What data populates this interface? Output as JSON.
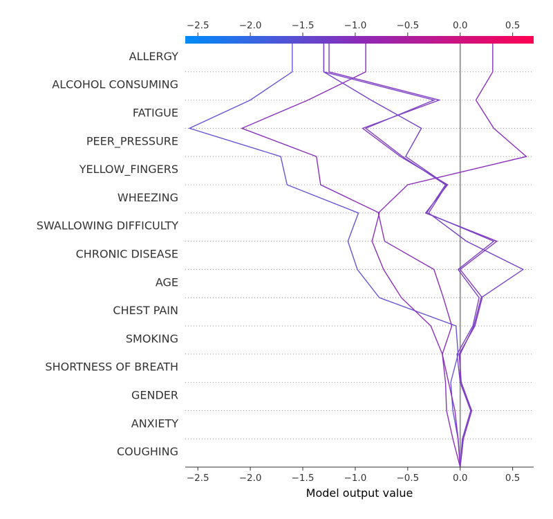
{
  "chart_data": {
    "type": "line",
    "title": "",
    "xlabel": "Model output value",
    "ylabel": "",
    "xlim": [
      -2.62,
      0.7
    ],
    "base_value": 0.0,
    "xticks": [
      -2.5,
      -2.0,
      -1.5,
      -1.0,
      -0.5,
      0.0,
      0.5
    ],
    "xtick_labels": [
      "−2.5",
      "−2.0",
      "−1.5",
      "−1.0",
      "−0.5",
      "0.0",
      "0.5"
    ],
    "colorbar": {
      "range": [
        -2.62,
        0.7
      ],
      "colors": [
        "#008bfb",
        "#8c2ab9",
        "#ff0052"
      ]
    },
    "grid": "dotted horizontal lines between feature rows",
    "features": [
      "ALLERGY ",
      "ALCOHOL CONSUMING",
      "FATIGUE ",
      "PEER_PRESSURE",
      "YELLOW_FINGERS",
      "WHEEZING",
      "SWALLOWING DIFFICULTY",
      "CHRONIC DISEASE",
      "AGE",
      "CHEST PAIN",
      "SMOKING",
      "SHORTNESS OF BREATH",
      "GENDER",
      "ANXIETY",
      "COUGHING"
    ],
    "series": [
      {
        "color": "#6655d8",
        "values": [
          -1.6,
          -2.0,
          -2.58,
          -1.71,
          -1.65,
          -0.97,
          -1.07,
          -0.98,
          -0.77,
          -0.04,
          -0.02,
          -0.09,
          -0.07,
          -0.02,
          0.0
        ]
      },
      {
        "color": "#8a2ebc",
        "values": [
          -0.9,
          -1.45,
          -2.08,
          -1.37,
          -1.33,
          -0.77,
          -0.84,
          -0.73,
          -0.56,
          -0.28,
          -0.17,
          -0.11,
          -0.05,
          -0.02,
          0.0
        ]
      },
      {
        "color": "#8b30bd",
        "values": [
          0.31,
          0.15,
          0.32,
          0.63,
          -0.5,
          -0.78,
          -0.72,
          -0.25,
          -0.16,
          -0.08,
          -0.17,
          -0.14,
          -0.13,
          -0.07,
          0.0
        ]
      },
      {
        "color": "#7640c8",
        "values": [
          -1.3,
          -0.85,
          -0.37,
          -0.52,
          -0.13,
          -0.3,
          0.06,
          0.6,
          0.2,
          0.13,
          0.0,
          0.0,
          0.11,
          0.03,
          0.0
        ]
      },
      {
        "color": "#843ac1",
        "values": [
          -1.25,
          -0.2,
          -0.93,
          -0.57,
          -0.12,
          -0.33,
          0.35,
          0.0,
          0.21,
          0.14,
          -0.01,
          0.01,
          0.11,
          0.03,
          0.0
        ]
      },
      {
        "color": "#7a44c7",
        "values": [
          -1.3,
          -0.25,
          -0.9,
          -0.55,
          -0.14,
          -0.32,
          0.32,
          -0.02,
          0.18,
          0.12,
          -0.03,
          0.0,
          0.1,
          0.02,
          0.0
        ]
      }
    ]
  }
}
